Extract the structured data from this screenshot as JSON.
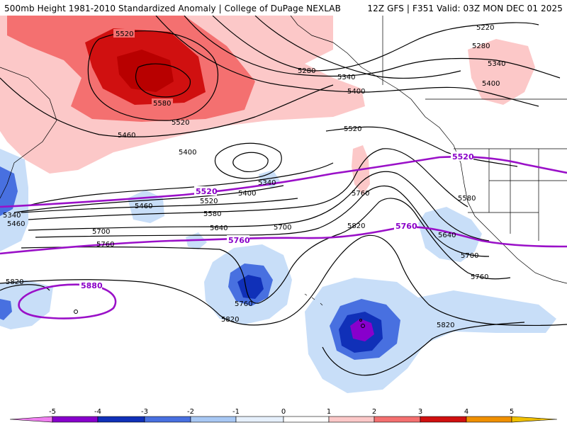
{
  "header": {
    "title_left": "500mb Height 1981-2010 Standardized Anomaly | College of DuPage NEXLAB",
    "title_right": "12Z GFS | F351 Valid: 03Z MON DEC 01 2025"
  },
  "colors": {
    "anom_neg5": "#e070e0",
    "anom_neg4": "#8800cc",
    "anom_neg3": "#1030b8",
    "anom_neg2": "#4870e0",
    "anom_neg1": "#c8def8",
    "anom_pos1": "#fcc8c8",
    "anom_pos2": "#f47070",
    "anom_pos3": "#d01010",
    "anom_pos4": "#a00000",
    "anom_pos5": "#f09000",
    "contour": "#000000",
    "highlight_contour": "#9a10c8"
  },
  "contour_labels": [
    {
      "id": "c5520a",
      "text": "5520"
    },
    {
      "id": "c5580",
      "text": "5580"
    },
    {
      "id": "c5520b",
      "text": "5520"
    },
    {
      "id": "c5460a",
      "text": "5460"
    },
    {
      "id": "c5400a",
      "text": "5400"
    },
    {
      "id": "c5340a",
      "text": "5340"
    },
    {
      "id": "c5280a",
      "text": "5280"
    },
    {
      "id": "c5340b",
      "text": "5340"
    },
    {
      "id": "c5400b",
      "text": "5400"
    },
    {
      "id": "c5220",
      "text": "5220"
    },
    {
      "id": "c5280b",
      "text": "5280"
    },
    {
      "id": "c5340c",
      "text": "5340"
    },
    {
      "id": "c5400c",
      "text": "5400"
    },
    {
      "id": "c5520c",
      "text": "5520"
    },
    {
      "id": "c5460b",
      "text": "5460"
    },
    {
      "id": "c5400d",
      "text": "5400"
    },
    {
      "id": "c5520d",
      "text": "5520"
    },
    {
      "id": "c5580b",
      "text": "5580"
    },
    {
      "id": "c5640a",
      "text": "5640"
    },
    {
      "id": "c5700a",
      "text": "5700"
    },
    {
      "id": "c5760a",
      "text": "5760"
    },
    {
      "id": "c5700b",
      "text": "5700"
    },
    {
      "id": "c5820a",
      "text": "5820"
    },
    {
      "id": "c5760b",
      "text": "5760"
    },
    {
      "id": "c5580c",
      "text": "5580"
    },
    {
      "id": "c5640b",
      "text": "5640"
    },
    {
      "id": "c5700c",
      "text": "5700"
    },
    {
      "id": "c5760c",
      "text": "5760"
    },
    {
      "id": "c5820b",
      "text": "5820"
    },
    {
      "id": "c5820c",
      "text": "5820"
    },
    {
      "id": "c5760d",
      "text": "5760"
    },
    {
      "id": "c5820d",
      "text": "5820"
    },
    {
      "id": "c5340d",
      "text": "5340"
    },
    {
      "id": "c5460c",
      "text": "5460"
    }
  ],
  "highlight_labels": [
    {
      "id": "p5520a",
      "text": "5520"
    },
    {
      "id": "p5520b",
      "text": "5520"
    },
    {
      "id": "p5760a",
      "text": "5760"
    },
    {
      "id": "p5760b",
      "text": "5760"
    },
    {
      "id": "p5880",
      "text": "5880"
    }
  ],
  "colorbar": {
    "labels": [
      "-5",
      "-4",
      "-3",
      "-2",
      "-1",
      "0",
      "1",
      "2",
      "3",
      "4",
      "5"
    ]
  }
}
